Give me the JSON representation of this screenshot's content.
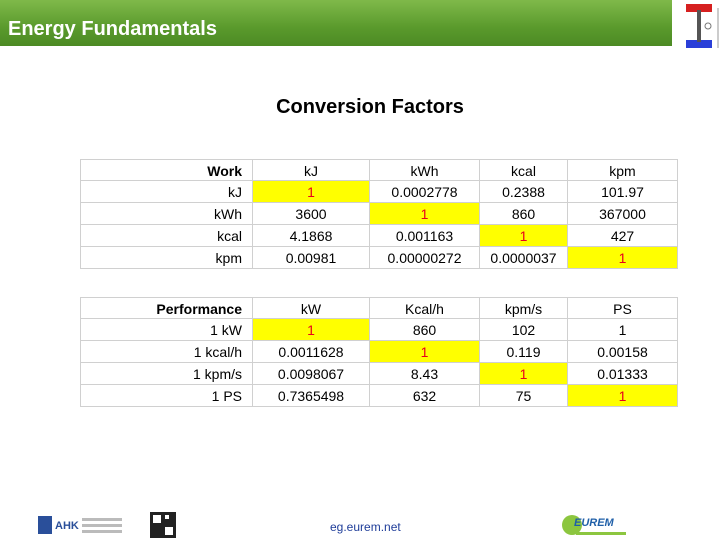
{
  "header": {
    "title": "Energy Fundamentals"
  },
  "heading": "Conversion Factors",
  "tables": [
    {
      "header": [
        "Work",
        "kJ",
        "kWh",
        "kcal",
        "kpm"
      ],
      "rows": [
        [
          "kJ",
          "1",
          "0.0002778",
          "0.2388",
          "101.97"
        ],
        [
          "kWh",
          "3600",
          "1",
          "860",
          "367000"
        ],
        [
          "kcal",
          "4.1868",
          "0.001163",
          "1",
          "427"
        ],
        [
          "kpm",
          "0.00981",
          "0.00000272",
          "0.0000037",
          "1"
        ]
      ]
    },
    {
      "header": [
        "Performance",
        "kW",
        "Kcal/h",
        "kpm/s",
        "PS"
      ],
      "rows": [
        [
          "1 kW",
          "1",
          "860",
          "102",
          "1"
        ],
        [
          "1 kcal/h",
          "0.0011628",
          "1",
          "0.119",
          "0.00158"
        ],
        [
          "1 kpm/s",
          "0.0098067",
          "8.43",
          "1",
          "0.01333"
        ],
        [
          "1 PS",
          "0.7365498",
          "632",
          "75",
          "1"
        ]
      ]
    }
  ],
  "footer": {
    "url": "eg.eurem.net",
    "logo_left": "AHK",
    "logo_right": "EUREM"
  }
}
